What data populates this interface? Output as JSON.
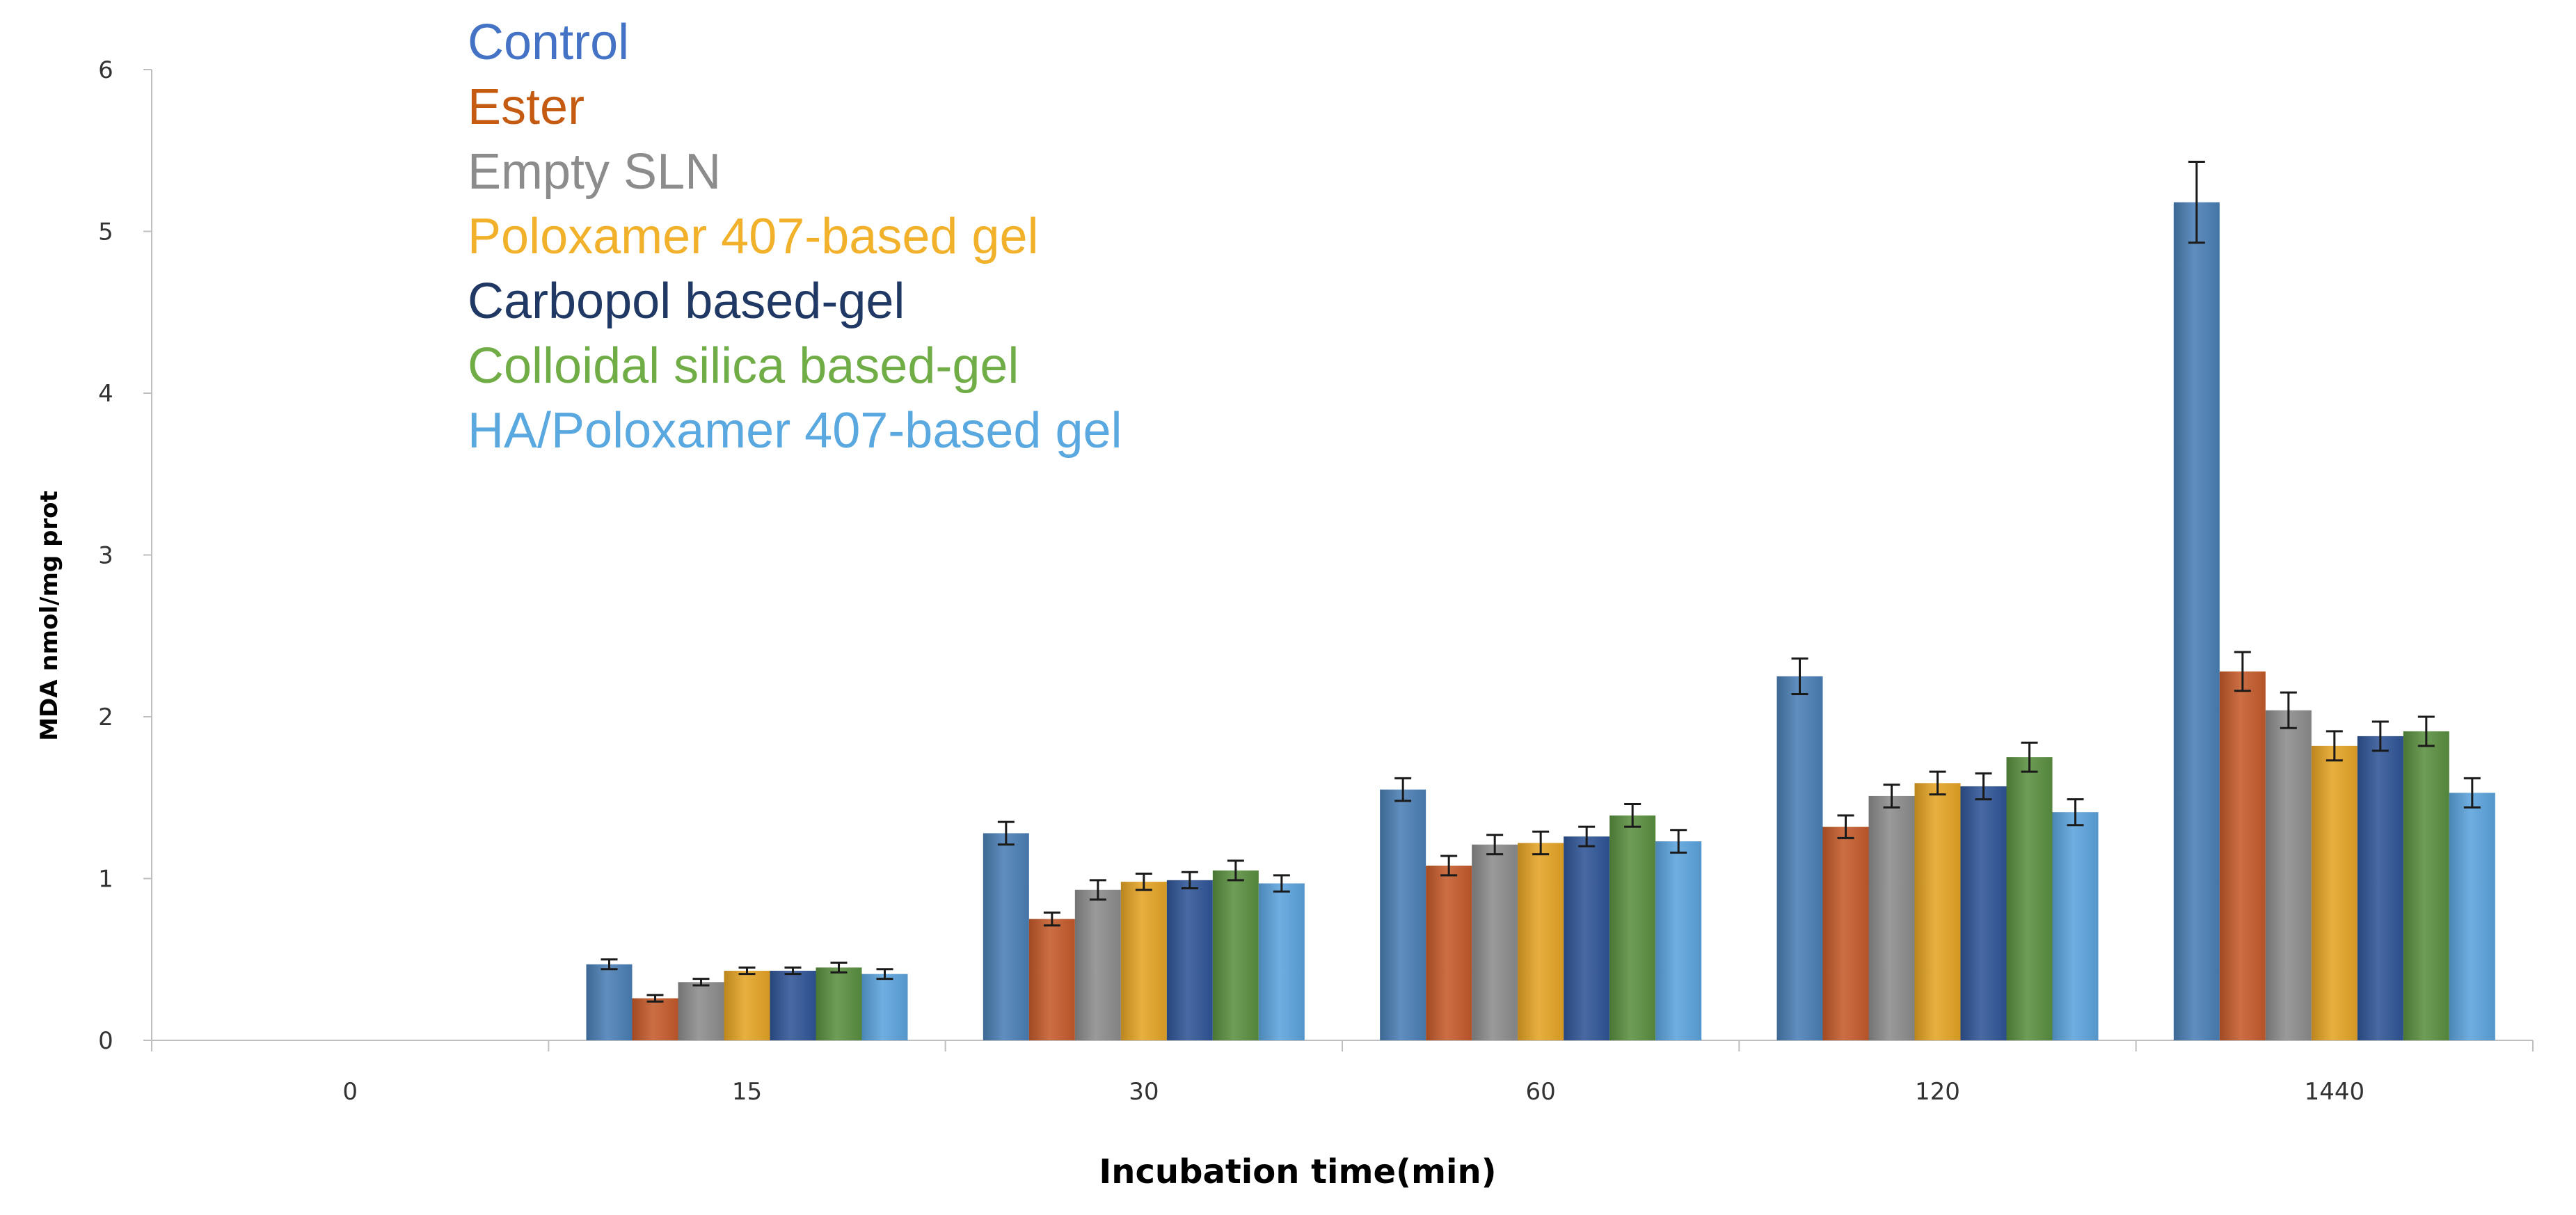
{
  "chart_data": {
    "type": "bar",
    "title": "",
    "xlabel": "Incubation time(min)",
    "ylabel": "MDA nmol/mg prot",
    "categories": [
      "0",
      "15",
      "30",
      "60",
      "120",
      "1440"
    ],
    "ylim": [
      0,
      6
    ],
    "yticks": [
      0,
      1,
      2,
      3,
      4,
      5,
      6
    ],
    "grid": false,
    "legend_position": "top-left",
    "series": [
      {
        "name": "Control",
        "color": "#4a7fb5",
        "legend_color": "#4472c4",
        "values": [
          0,
          0.47,
          1.28,
          1.55,
          2.25,
          5.18
        ],
        "errors": [
          0,
          0.03,
          0.07,
          0.07,
          0.11,
          0.25
        ]
      },
      {
        "name": "Ester",
        "color": "#c55a2b",
        "legend_color": "#c55a11",
        "values": [
          0,
          0.26,
          0.75,
          1.08,
          1.32,
          2.28
        ],
        "errors": [
          0,
          0.02,
          0.04,
          0.06,
          0.07,
          0.12
        ]
      },
      {
        "name": "Empty SLN",
        "color": "#8c8c8c",
        "legend_color": "#8c8c8c",
        "values": [
          0,
          0.36,
          0.93,
          1.21,
          1.51,
          2.04
        ],
        "errors": [
          0,
          0.02,
          0.06,
          0.06,
          0.07,
          0.11
        ]
      },
      {
        "name": "Poloxamer 407-based gel",
        "color": "#e5a425",
        "legend_color": "#f2b12a",
        "values": [
          0,
          0.43,
          0.98,
          1.22,
          1.59,
          1.82
        ],
        "errors": [
          0,
          0.02,
          0.05,
          0.07,
          0.07,
          0.09
        ]
      },
      {
        "name": "Carbopol based-gel",
        "color": "#2f5597",
        "legend_color": "#203864",
        "values": [
          0,
          0.43,
          0.99,
          1.26,
          1.57,
          1.88
        ],
        "errors": [
          0,
          0.02,
          0.05,
          0.06,
          0.08,
          0.09
        ]
      },
      {
        "name": "Colloidal silica based-gel",
        "color": "#5a9040",
        "legend_color": "#70ad47",
        "values": [
          0,
          0.45,
          1.05,
          1.39,
          1.75,
          1.91
        ],
        "errors": [
          0,
          0.03,
          0.06,
          0.07,
          0.09,
          0.09
        ]
      },
      {
        "name": "HA/Poloxamer 407-based gel",
        "color": "#5ba3dd",
        "legend_color": "#5aa8e0",
        "values": [
          0,
          0.41,
          0.97,
          1.23,
          1.41,
          1.53
        ],
        "errors": [
          0,
          0.03,
          0.05,
          0.07,
          0.08,
          0.09
        ]
      }
    ]
  }
}
